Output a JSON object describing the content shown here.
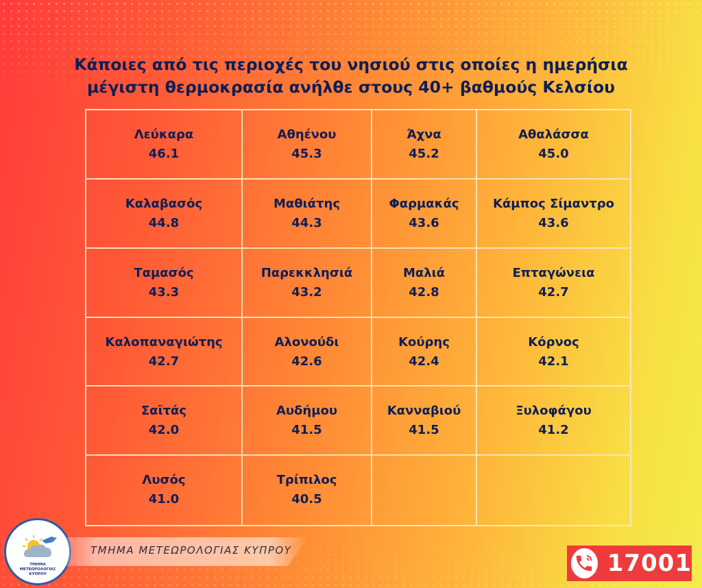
{
  "title_line1": "Κάποιες από τις περιοχές του νησιού στις οποίες η ημερήσια",
  "title_line2": "μέγιστη θερμοκρασία ανήλθε στους 40+ βαθμούς Κελσίου",
  "locations": [
    {
      "name": "Λεύκαρα",
      "temp": "46.1"
    },
    {
      "name": "Αθηένου",
      "temp": "45.3"
    },
    {
      "name": "Άχνα",
      "temp": "45.2"
    },
    {
      "name": "Αθαλάσσα",
      "temp": "45.0"
    },
    {
      "name": "Καλαβασός",
      "temp": "44.8"
    },
    {
      "name": "Μαθιάτης",
      "temp": "44.3"
    },
    {
      "name": "Φαρμακάς",
      "temp": "43.6"
    },
    {
      "name": "Κάμπος Σίμαντρο",
      "temp": "43.6"
    },
    {
      "name": "Ταμασός",
      "temp": "43.3"
    },
    {
      "name": "Παρεκκλησιά",
      "temp": "43.2"
    },
    {
      "name": "Μαλιά",
      "temp": "42.8"
    },
    {
      "name": "Επταγώνεια",
      "temp": "42.7"
    },
    {
      "name": "Καλοπαναγιώτης",
      "temp": "42.7"
    },
    {
      "name": "Αλονούδι",
      "temp": "42.6"
    },
    {
      "name": "Κούρης",
      "temp": "42.4"
    },
    {
      "name": "Κόρνος",
      "temp": "42.1"
    },
    {
      "name": "Σαϊτάς",
      "temp": "42.0"
    },
    {
      "name": "Αυδήμου",
      "temp": "41.5"
    },
    {
      "name": "Κανναβιού",
      "temp": "41.5"
    },
    {
      "name": "Ξυλοφάγου",
      "temp": "41.2"
    },
    {
      "name": "Λυσός",
      "temp": "41.0"
    },
    {
      "name": "Τρίπιλος",
      "temp": "40.5"
    },
    {
      "name": "",
      "temp": ""
    },
    {
      "name": "",
      "temp": ""
    }
  ],
  "department_name": "ΤΜΗΜΑ ΜΕΤΕΩΡΟΛΟΓΙΑΣ ΚΥΠΡΟΥ",
  "logo_text_line1": "ΤΜΗΜΑ",
  "logo_text_line2": "ΜΕΤΕΩΡΟΛΟΓΙΑΣ",
  "logo_text_line3": "ΚΥΠΡΟΥ",
  "phone_number": "17001",
  "colors": {
    "text": "#0e1e55",
    "phone_bg": "#ef3b3b",
    "grid_line": "#ffe6be"
  },
  "icons": {
    "phone": "phone-icon",
    "logo": "sun-cloud-cyprus-logo"
  }
}
